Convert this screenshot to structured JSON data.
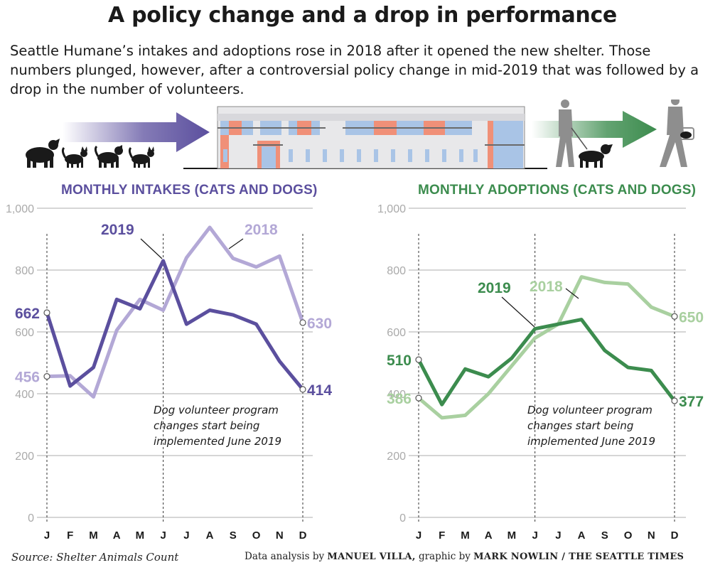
{
  "title": "A policy change and a drop in performance",
  "subtitle": "Seattle Humane’s intakes and adoptions rose in 2018 after it opened the new shelter. Those numbers plunged, however, after a controversial policy change in mid-2019 that was followed by a drop in the number of volunteers.",
  "colors": {
    "intake_2019": "#5b4f9e",
    "intake_2018": "#b3a8d6",
    "adopt_2019": "#3c8c4e",
    "adopt_2018": "#a9d0a0",
    "grid": "#c8c8c8"
  },
  "illustration": {
    "left_icons": [
      "dog-icon",
      "cat-icon",
      "dog-icon",
      "cat-icon"
    ],
    "center": "shelter-building",
    "right_icons": [
      "person-walking-dog-icon",
      "person-carrying-cat-icon"
    ]
  },
  "chart_data": [
    {
      "type": "line",
      "title": "MONTHLY INTAKES (CATS AND DOGS)",
      "categories": [
        "J",
        "F",
        "M",
        "A",
        "M",
        "J",
        "J",
        "A",
        "S",
        "O",
        "N",
        "D"
      ],
      "ylim": [
        0,
        1000
      ],
      "yticks": [
        "1,000",
        "800",
        "600",
        "400",
        "200",
        "0"
      ],
      "grid": true,
      "series": [
        {
          "name": "2018",
          "values": [
            456,
            458,
            390,
            605,
            705,
            670,
            840,
            938,
            838,
            810,
            845,
            630
          ]
        },
        {
          "name": "2019",
          "values": [
            662,
            425,
            485,
            705,
            675,
            830,
            625,
            670,
            655,
            625,
            505,
            414
          ]
        }
      ],
      "start_labels": {
        "2019": "662",
        "2018": "456"
      },
      "end_labels": {
        "2018": "630",
        "2019": "414"
      },
      "annotation": [
        "Dog volunteer program",
        "changes start being",
        "implemented June 2019"
      ]
    },
    {
      "type": "line",
      "title": "MONTHLY ADOPTIONS (CATS AND DOGS)",
      "categories": [
        "J",
        "F",
        "M",
        "A",
        "M",
        "J",
        "J",
        "A",
        "S",
        "O",
        "N",
        "D"
      ],
      "ylim": [
        0,
        1000
      ],
      "yticks": [
        "1,000",
        "800",
        "600",
        "400",
        "200",
        "0"
      ],
      "grid": true,
      "series": [
        {
          "name": "2018",
          "values": [
            386,
            322,
            330,
            400,
            490,
            580,
            625,
            778,
            760,
            755,
            680,
            650
          ]
        },
        {
          "name": "2019",
          "values": [
            510,
            365,
            480,
            455,
            515,
            610,
            625,
            640,
            540,
            485,
            475,
            377
          ]
        }
      ],
      "start_labels": {
        "2019": "510",
        "2018": "386"
      },
      "end_labels": {
        "2018": "650",
        "2019": "377"
      },
      "annotation": [
        "Dog volunteer program",
        "changes start being",
        "implemented June 2019"
      ]
    }
  ],
  "footer": {
    "source": "Source: Shelter Animals Count",
    "credit_prefix": "Data analysis by",
    "analyst": "MANUEL VILLA,",
    "credit_mid": "graphic by",
    "artist": "MARK NOWLIN / THE SEATTLE TIMES"
  }
}
